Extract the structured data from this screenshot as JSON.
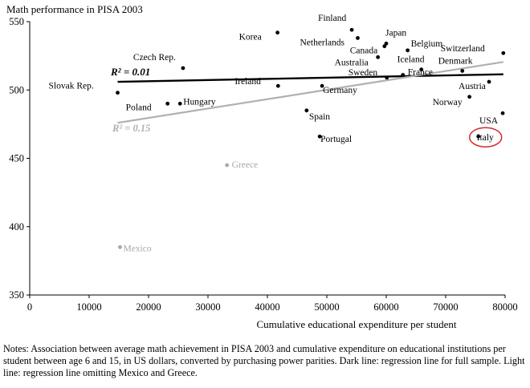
{
  "chart_data": {
    "type": "scatter",
    "title": "",
    "xlabel": "Cumulative educational expenditure per student",
    "ylabel": "Math performance in PISA 2003",
    "xlim": [
      0,
      80000
    ],
    "ylim": [
      350,
      550
    ],
    "xticks": [
      0,
      10000,
      20000,
      30000,
      40000,
      50000,
      60000,
      70000,
      80000
    ],
    "yticks": [
      350,
      400,
      450,
      500,
      550
    ],
    "grid": false,
    "points": [
      {
        "label": "Slovak Rep.",
        "x": 14800,
        "y": 498,
        "muted": false
      },
      {
        "label": "Czech Rep.",
        "x": 25800,
        "y": 516,
        "muted": false
      },
      {
        "label": "Poland",
        "x": 23200,
        "y": 490,
        "muted": false
      },
      {
        "label": "Hungary",
        "x": 25300,
        "y": 490,
        "muted": false
      },
      {
        "label": "Korea",
        "x": 41700,
        "y": 542,
        "muted": false
      },
      {
        "label": "Ireland",
        "x": 41800,
        "y": 503,
        "muted": false
      },
      {
        "label": "Finland",
        "x": 54200,
        "y": 544,
        "muted": false
      },
      {
        "label": "Netherlands",
        "x": 55200,
        "y": 538,
        "muted": false
      },
      {
        "label": "Japan",
        "x": 60000,
        "y": 534,
        "muted": false
      },
      {
        "label": "Canada",
        "x": 59700,
        "y": 532,
        "muted": false
      },
      {
        "label": "Belgium",
        "x": 63600,
        "y": 529,
        "muted": false
      },
      {
        "label": "Switzerland",
        "x": 79700,
        "y": 527,
        "muted": false
      },
      {
        "label": "Australia",
        "x": 58600,
        "y": 524,
        "muted": false
      },
      {
        "label": "Iceland",
        "x": 65900,
        "y": 515,
        "muted": false
      },
      {
        "label": "Denmark",
        "x": 72800,
        "y": 514,
        "muted": false
      },
      {
        "label": "Sweden",
        "x": 60100,
        "y": 509,
        "muted": false
      },
      {
        "label": "France",
        "x": 62800,
        "y": 511,
        "muted": false
      },
      {
        "label": "Germany",
        "x": 49200,
        "y": 503,
        "muted": false
      },
      {
        "label": "Austria",
        "x": 77300,
        "y": 506,
        "muted": false
      },
      {
        "label": "Norway",
        "x": 74000,
        "y": 495,
        "muted": false
      },
      {
        "label": "Spain",
        "x": 46600,
        "y": 485,
        "muted": false
      },
      {
        "label": "USA",
        "x": 79600,
        "y": 483,
        "muted": false
      },
      {
        "label": "Portugal",
        "x": 48800,
        "y": 466,
        "muted": false
      },
      {
        "label": "Italy",
        "x": 75500,
        "y": 466,
        "muted": false,
        "highlight": true
      },
      {
        "label": "Greece",
        "x": 33200,
        "y": 445,
        "muted": true
      },
      {
        "label": "Mexico",
        "x": 15200,
        "y": 385,
        "muted": true
      }
    ],
    "regression_lines": [
      {
        "label": "R² = 0.01",
        "x": [
          14800,
          79700
        ],
        "y": [
          506,
          511.5
        ],
        "color": "#000000"
      },
      {
        "label": "R² = 0.15",
        "x": [
          14800,
          79700
        ],
        "y": [
          476,
          520.5
        ],
        "color": "#b0b0b0"
      }
    ],
    "colors": {
      "point": "#000000",
      "muted": "#a8a8a8",
      "highlight": "#d42a2a"
    }
  },
  "notes": "Notes:  Association between average math achievement in PISA 2003 and cumulative expenditure on educational institutions per student between age 6 and 15, in US dollars, converted by purchasing power parities.  Dark line: regression line for full sample.  Light line: regression line omitting Mexico and Greece."
}
